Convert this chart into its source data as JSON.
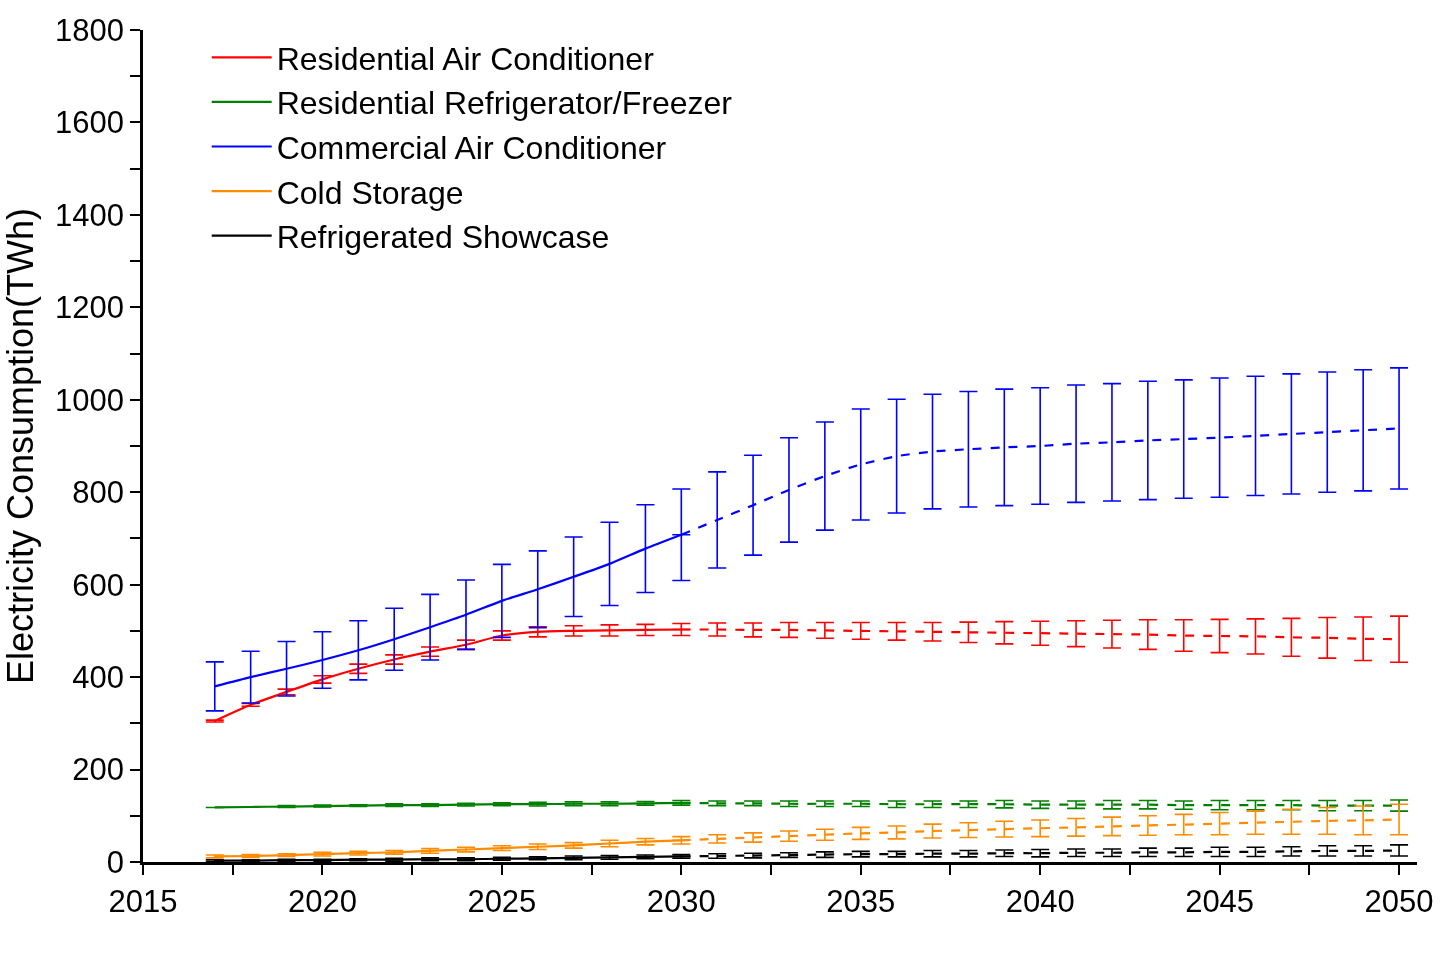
{
  "chart_data": {
    "type": "line",
    "ylabel": "Electricity Consumption(TWh)",
    "xlim": [
      2015,
      2050.5
    ],
    "ylim": [
      0,
      1800
    ],
    "xticks": [
      2015,
      {
        "value": 2017.5,
        "label": null
      },
      2020,
      {
        "value": 2022.5,
        "label": null
      },
      2025,
      {
        "value": 2027.5,
        "label": null
      },
      2030,
      {
        "value": 2032.5,
        "label": null
      },
      2035,
      {
        "value": 2037.5,
        "label": null
      },
      2040,
      {
        "value": 2042.5,
        "label": null
      },
      2045,
      {
        "value": 2047.5,
        "label": null
      },
      2050
    ],
    "yticks": [
      0,
      {
        "value": 100,
        "label": null
      },
      200,
      {
        "value": 300,
        "label": null
      },
      400,
      {
        "value": 500,
        "label": null
      },
      600,
      {
        "value": 700,
        "label": null
      },
      800,
      {
        "value": 900,
        "label": null
      },
      1000,
      {
        "value": 1100,
        "label": null
      },
      1200,
      {
        "value": 1300,
        "label": null
      },
      1400,
      {
        "value": 1500,
        "label": null
      },
      1600,
      {
        "value": 1700,
        "label": null
      },
      1800
    ],
    "legend": "top left",
    "series": [
      {
        "name": "Residential Air Conditioner",
        "color": "#ff0000",
        "line_style": "solid",
        "x": [
          2017,
          2018,
          2019,
          2020,
          2021,
          2022,
          2023,
          2024,
          2025,
          2026,
          2027,
          2028,
          2029,
          2030
        ],
        "values": [
          305,
          340,
          368,
          395,
          418,
          438,
          455,
          470,
          490,
          498,
          500,
          501,
          502,
          503
        ],
        "errors": [
          2,
          3,
          6,
          8,
          10,
          10,
          10,
          10,
          10,
          11,
          11,
          12,
          12,
          13
        ]
      },
      {
        "color": "#ff0000",
        "line_style": "dashed",
        "x": [
          2030,
          2031,
          2032,
          2033,
          2034,
          2035,
          2036,
          2037,
          2038,
          2039,
          2040,
          2041,
          2042,
          2043,
          2044,
          2045,
          2046,
          2047,
          2048,
          2049,
          2050
        ],
        "values": [
          503,
          503,
          502,
          502,
          501,
          500,
          499,
          498,
          497,
          496,
          495,
          494,
          493,
          492,
          490,
          489,
          488,
          486,
          485,
          483,
          482
        ],
        "errors": [
          null,
          14,
          15,
          16,
          17,
          18,
          19,
          20,
          22,
          24,
          26,
          28,
          30,
          32,
          34,
          36,
          38,
          41,
          44,
          47,
          50
        ]
      },
      {
        "name": "Residential Refrigerator/Freezer",
        "color": "#008000",
        "line_style": "solid",
        "x": [
          2017,
          2018,
          2019,
          2020,
          2021,
          2022,
          2023,
          2024,
          2025,
          2026,
          2027,
          2028,
          2029,
          2030
        ],
        "values": [
          118,
          119,
          120,
          121,
          122,
          123,
          123,
          124,
          125,
          125,
          126,
          126,
          127,
          128
        ],
        "errors": [
          null,
          null,
          2,
          2,
          2,
          3,
          3,
          3,
          3,
          4,
          4,
          4,
          4,
          5
        ]
      },
      {
        "color": "#008000",
        "line_style": "dashed",
        "x": [
          2030,
          2031,
          2032,
          2033,
          2034,
          2035,
          2036,
          2037,
          2038,
          2039,
          2040,
          2041,
          2042,
          2043,
          2044,
          2045,
          2046,
          2047,
          2048,
          2049,
          2050
        ],
        "values": [
          128,
          127,
          127,
          126,
          126,
          126,
          125,
          125,
          125,
          125,
          124,
          124,
          124,
          124,
          123,
          123,
          123,
          123,
          122,
          122,
          122
        ],
        "errors": [
          null,
          5,
          5,
          6,
          6,
          6,
          7,
          7,
          7,
          8,
          8,
          8,
          9,
          9,
          9,
          10,
          10,
          10,
          11,
          11,
          12
        ]
      },
      {
        "name": "Commercial Air Conditioner",
        "color": "#0000ff",
        "line_style": "solid",
        "x": [
          2017,
          2018,
          2019,
          2020,
          2021,
          2022,
          2023,
          2024,
          2025,
          2026,
          2027,
          2028,
          2029,
          2030
        ],
        "values": [
          380,
          400,
          418,
          437,
          458,
          482,
          508,
          535,
          565,
          590,
          617,
          645,
          678,
          708
        ],
        "errors": [
          53,
          56,
          59,
          61,
          64,
          67,
          71,
          75,
          79,
          83,
          86,
          90,
          95,
          99
        ]
      },
      {
        "color": "#0000ff",
        "line_style": "dashed",
        "x": [
          2030,
          2031,
          2032,
          2033,
          2034,
          2035,
          2036,
          2037,
          2038,
          2039,
          2040,
          2041,
          2042,
          2043,
          2044,
          2045,
          2046,
          2047,
          2048,
          2049,
          2050
        ],
        "values": [
          708,
          740,
          772,
          805,
          835,
          860,
          878,
          888,
          893,
          897,
          900,
          905,
          908,
          912,
          915,
          918,
          922,
          926,
          930,
          934,
          938
        ],
        "errors": [
          null,
          104,
          108,
          113,
          117,
          120,
          123,
          124,
          125,
          126,
          126,
          127,
          127,
          128,
          128,
          129,
          129,
          130,
          130,
          131,
          131
        ]
      },
      {
        "name": "Cold Storage",
        "color": "#ff8c00",
        "line_style": "solid",
        "x": [
          2017,
          2018,
          2019,
          2020,
          2021,
          2022,
          2023,
          2024,
          2025,
          2026,
          2027,
          2028,
          2029,
          2030
        ],
        "values": [
          12,
          13,
          15,
          17,
          19,
          21,
          24,
          27,
          30,
          33,
          36,
          40,
          44,
          47
        ],
        "errors": [
          3,
          3,
          3,
          4,
          4,
          4,
          5,
          5,
          5,
          6,
          6,
          7,
          7,
          8
        ]
      },
      {
        "color": "#ff8c00",
        "line_style": "dashed",
        "x": [
          2030,
          2031,
          2032,
          2033,
          2034,
          2035,
          2036,
          2037,
          2038,
          2039,
          2040,
          2041,
          2042,
          2043,
          2044,
          2045,
          2046,
          2047,
          2048,
          2049,
          2050
        ],
        "values": [
          47,
          50,
          53,
          56,
          59,
          62,
          64,
          67,
          69,
          71,
          73,
          75,
          77,
          79,
          81,
          83,
          85,
          87,
          89,
          90,
          92
        ],
        "errors": [
          null,
          9,
          10,
          11,
          12,
          13,
          14,
          15,
          16,
          17,
          18,
          19,
          20,
          21,
          22,
          24,
          25,
          27,
          29,
          31,
          33
        ]
      },
      {
        "name": "Refrigerated Showcase",
        "color": "#000000",
        "line_style": "solid",
        "x": [
          2017,
          2018,
          2019,
          2020,
          2021,
          2022,
          2023,
          2024,
          2025,
          2026,
          2027,
          2028,
          2029,
          2030
        ],
        "values": [
          3,
          3,
          4,
          4,
          5,
          5,
          6,
          6,
          7,
          8,
          9,
          10,
          11,
          12
        ],
        "errors": [
          2,
          2,
          2,
          2,
          2,
          3,
          3,
          3,
          3,
          3,
          4,
          4,
          4,
          4
        ]
      },
      {
        "color": "#000000",
        "line_style": "dashed",
        "x": [
          2030,
          2031,
          2032,
          2033,
          2034,
          2035,
          2036,
          2037,
          2038,
          2039,
          2040,
          2041,
          2042,
          2043,
          2044,
          2045,
          2046,
          2047,
          2048,
          2049,
          2050
        ],
        "values": [
          12,
          13,
          14,
          15,
          16,
          17,
          17,
          18,
          18,
          19,
          19,
          20,
          20,
          21,
          21,
          22,
          22,
          23,
          24,
          24,
          25
        ],
        "errors": [
          null,
          5,
          5,
          5,
          6,
          6,
          6,
          7,
          7,
          7,
          8,
          8,
          8,
          9,
          9,
          10,
          10,
          10,
          11,
          11,
          12
        ]
      }
    ]
  }
}
